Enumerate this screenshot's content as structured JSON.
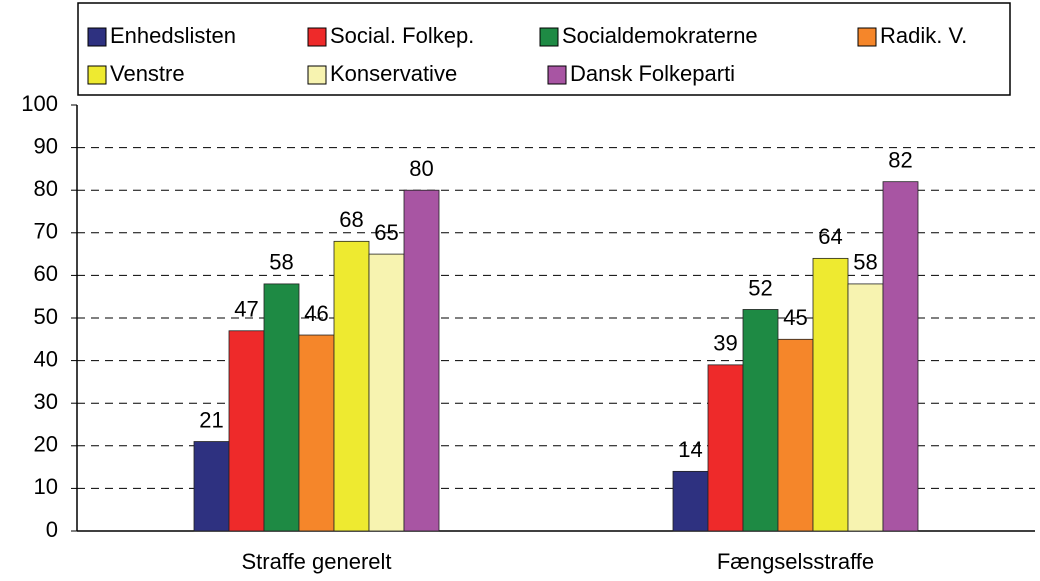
{
  "chart_data": {
    "type": "bar",
    "categories": [
      "Straffe generelt",
      "Fængselsstraffe"
    ],
    "series": [
      {
        "name": "Enhedslisten",
        "color": "#2e3180",
        "values": [
          21,
          14
        ]
      },
      {
        "name": "Social. Folkep.",
        "color": "#ee2a2a",
        "values": [
          47,
          39
        ]
      },
      {
        "name": "Socialdemokraterne",
        "color": "#1e8a44",
        "values": [
          58,
          52
        ]
      },
      {
        "name": "Radik. V.",
        "color": "#f5862a",
        "values": [
          46,
          45
        ]
      },
      {
        "name": "Venstre",
        "color": "#eeea30",
        "values": [
          68,
          64
        ]
      },
      {
        "name": "Konservative",
        "color": "#f7f3b0",
        "values": [
          65,
          58
        ]
      },
      {
        "name": "Dansk Folkeparti",
        "color": "#a855a3",
        "values": [
          80,
          82
        ]
      }
    ],
    "ylim": [
      0,
      100
    ],
    "yticks": [
      0,
      10,
      20,
      30,
      40,
      50,
      60,
      70,
      80,
      90,
      100
    ],
    "grid": true,
    "legend": "top"
  }
}
